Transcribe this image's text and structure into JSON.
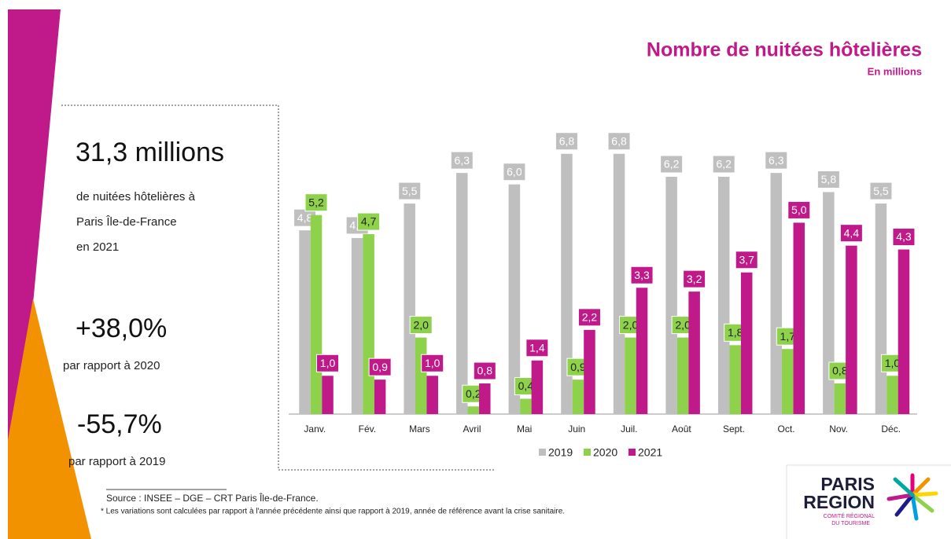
{
  "header": {
    "title": "Nombre de nuitées hôtelières",
    "subtitle": "En millions"
  },
  "kpis": [
    {
      "value": "31,3 millions",
      "lines": [
        "de nuitées hôtelières à",
        "Paris Île-de-France",
        "en 2021"
      ]
    },
    {
      "value": "+38,0%",
      "lines": [
        "par rapport à 2020"
      ]
    },
    {
      "value": "-55,7%",
      "lines": [
        "par rapport à 2019"
      ]
    }
  ],
  "chart_data": {
    "type": "bar",
    "categories": [
      "Janv.",
      "Fév.",
      "Mars",
      "Avril",
      "Mai",
      "Juin",
      "Juil.",
      "Août",
      "Sept.",
      "Oct.",
      "Nov.",
      "Déc."
    ],
    "ylim": [
      0,
      7
    ],
    "series": [
      {
        "name": "2019",
        "color": "#bfbfbf",
        "label_text_color": "#ffffff",
        "values": [
          4.8,
          4.6,
          5.5,
          6.3,
          6.0,
          6.8,
          6.8,
          6.2,
          6.2,
          6.3,
          5.8,
          5.5
        ],
        "value_labels": [
          "4,8",
          "4,6",
          "5,5",
          "6,3",
          "6,0",
          "6,8",
          "6,8",
          "6,2",
          "6,2",
          "6,3",
          "5,8",
          "5,5"
        ]
      },
      {
        "name": "2020",
        "color": "#8ed14b",
        "label_text_color": "#222222",
        "values": [
          5.2,
          4.7,
          2.0,
          0.2,
          0.4,
          0.9,
          2.0,
          2.0,
          1.8,
          1.7,
          0.8,
          1.0
        ],
        "value_labels": [
          "5,2",
          "4,7",
          "2,0",
          "0,2",
          "0,4",
          "0,9",
          "2,0",
          "2,0",
          "1,8",
          "1,7",
          "0,8",
          "1,0"
        ]
      },
      {
        "name": "2021",
        "color": "#c0198a",
        "label_text_color": "#ffffff",
        "values": [
          1.0,
          0.9,
          1.0,
          0.8,
          1.4,
          2.2,
          3.3,
          3.2,
          3.7,
          5.0,
          4.4,
          4.3
        ],
        "value_labels": [
          "1,0",
          "0,9",
          "1,0",
          "0,8",
          "1,4",
          "2,2",
          "3,3",
          "3,2",
          "3,7",
          "5,0",
          "4,4",
          "4,3"
        ]
      }
    ],
    "legend": "bottom"
  },
  "footer": {
    "source": "Source : INSEE – DGE – CRT Paris Île-de-France.",
    "note": "* Les variations sont calculées par rapport à l'année précédente ainsi que rapport à 2019, année de référence avant la crise sanitaire."
  },
  "logo": {
    "line1": "PARIS",
    "line2": "REGION",
    "line3": "COMITÉ RÉGIONAL",
    "line4": "DU TOURISME"
  }
}
